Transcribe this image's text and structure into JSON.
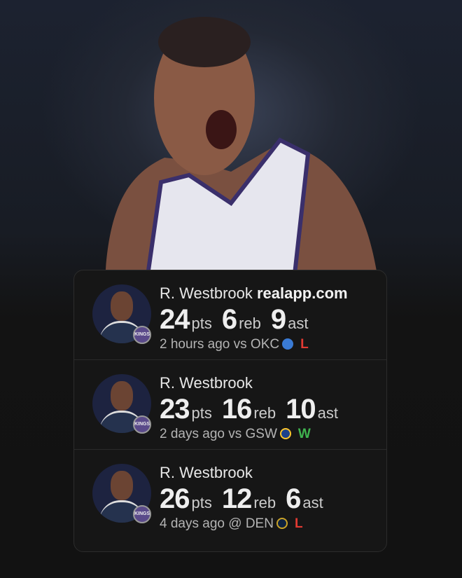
{
  "watermark": "realapp.com",
  "colors": {
    "loss": "#e23a32",
    "win": "#3fb34f"
  },
  "games": [
    {
      "player": "R. Westbrook",
      "pts": "24",
      "reb": "6",
      "ast": "9",
      "when": "2 hours ago",
      "venue": "vs",
      "opp": "OKC",
      "opp_logo_color": "#3a7bd5",
      "result": "L"
    },
    {
      "player": "R. Westbrook",
      "pts": "23",
      "reb": "16",
      "ast": "10",
      "when": "2 days ago",
      "venue": "vs",
      "opp": "GSW",
      "opp_logo_color": "#1d428a",
      "result": "W"
    },
    {
      "player": "R. Westbrook",
      "pts": "26",
      "reb": "12",
      "ast": "6",
      "when": "4 days ago",
      "venue": "@",
      "opp": "DEN",
      "opp_logo_color": "#c9a227",
      "result": "L"
    }
  ],
  "units": {
    "pts": "pts",
    "reb": "reb",
    "ast": "ast"
  },
  "team_badge": "KINGS"
}
